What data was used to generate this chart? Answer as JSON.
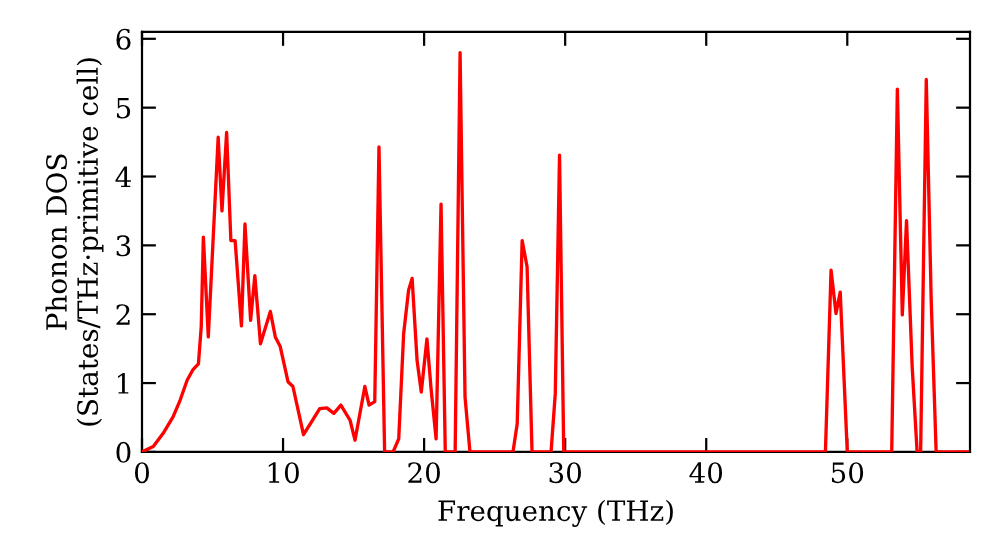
{
  "chart_data": {
    "type": "line",
    "xlabel": "Frequency (THz)",
    "ylabel": "Phonon DOS\n(States/THz·primitive cell)",
    "xlim": [
      0,
      58.7
    ],
    "ylim": [
      0,
      6.1
    ],
    "xticks": [
      0,
      10,
      20,
      30,
      40,
      50
    ],
    "yticks": [
      0,
      1,
      2,
      3,
      4,
      5,
      6
    ],
    "grid": false,
    "marker": "none",
    "line_style": "solid",
    "series": [
      {
        "color": "#ff0000",
        "x": [
          0,
          0.8,
          1.5,
          2.2,
          2.7,
          3.2,
          3.6,
          4.0,
          4.2,
          4.35,
          4.7,
          5.4,
          5.67,
          6.0,
          6.3,
          6.6,
          7.05,
          7.3,
          7.7,
          8.0,
          8.4,
          9.1,
          9.45,
          9.8,
          10.35,
          10.7,
          11.45,
          12.15,
          12.6,
          13.1,
          13.6,
          14.1,
          14.75,
          15.1,
          15.8,
          16.1,
          16.5,
          16.8,
          17.2,
          17.8,
          18.2,
          18.55,
          18.9,
          19.15,
          19.5,
          19.8,
          20.2,
          20.5,
          20.85,
          21.2,
          21.5,
          22.2,
          22.55,
          22.9,
          23.25,
          26.3,
          26.6,
          26.95,
          27.3,
          27.65,
          29.0,
          29.3,
          29.6,
          29.9,
          48.45,
          48.85,
          49.2,
          49.5,
          50.0,
          53.15,
          53.55,
          53.9,
          54.2,
          54.6,
          54.95,
          55.2,
          55.6,
          55.95,
          56.3,
          58.5
        ],
        "values": [
          0,
          0.08,
          0.27,
          0.51,
          0.75,
          1.04,
          1.19,
          1.28,
          1.82,
          3.12,
          1.67,
          4.57,
          3.5,
          4.64,
          3.07,
          3.07,
          1.83,
          3.31,
          1.91,
          2.56,
          1.57,
          2.04,
          1.67,
          1.53,
          1.02,
          0.95,
          0.25,
          0.48,
          0.63,
          0.64,
          0.56,
          0.68,
          0.46,
          0.17,
          0.95,
          0.68,
          0.73,
          4.43,
          0,
          0,
          0.19,
          1.72,
          2.35,
          2.52,
          1.33,
          0.87,
          1.64,
          0.9,
          0.19,
          3.6,
          0,
          0,
          5.8,
          0.8,
          0,
          0,
          0.41,
          3.07,
          2.69,
          0,
          0,
          0.85,
          4.31,
          0,
          0,
          2.64,
          2.01,
          2.32,
          0,
          0,
          5.27,
          1.99,
          3.36,
          1.24,
          0,
          0,
          5.41,
          2.2,
          0,
          0
        ]
      }
    ]
  }
}
